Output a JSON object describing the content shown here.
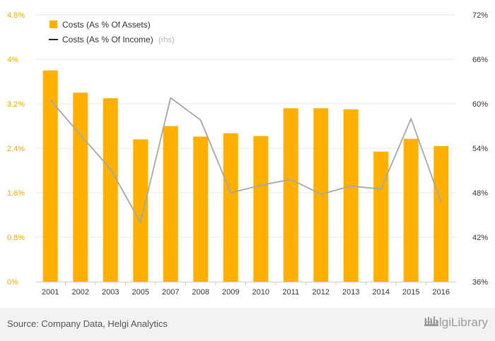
{
  "chart_data": {
    "type": "bar",
    "categories": [
      "2001",
      "2002",
      "2003",
      "2005",
      "2007",
      "2008",
      "2009",
      "2010",
      "2011",
      "2012",
      "2013",
      "2014",
      "2015",
      "2016"
    ],
    "series": [
      {
        "name": "Costs (As % Of Assets)",
        "axis": "left",
        "kind": "bar",
        "color": "#ffb000",
        "values": [
          3.8,
          3.4,
          3.3,
          2.56,
          2.8,
          2.61,
          2.67,
          2.62,
          3.12,
          3.12,
          3.1,
          2.34,
          2.57,
          2.44
        ]
      },
      {
        "name": "Costs (As % Of Income)",
        "axis": "right",
        "kind": "line",
        "color": "#a6a6a6",
        "values": [
          60.5,
          55.8,
          51.2,
          44.0,
          60.8,
          57.8,
          48.0,
          49.0,
          49.8,
          47.8,
          48.9,
          48.5,
          58.0,
          46.7
        ]
      }
    ],
    "yleft": {
      "lim": [
        0,
        4.8
      ],
      "ticks": [
        "0%",
        "0.8%",
        "1.6%",
        "2.4%",
        "3.2%",
        "4%",
        "4.8%"
      ]
    },
    "yright": {
      "lim": [
        36,
        72
      ],
      "ticks": [
        "36%",
        "42%",
        "48%",
        "54%",
        "60%",
        "66%",
        "72%"
      ]
    },
    "legend": {
      "position": "top-left",
      "items": [
        {
          "label": "Costs (As % Of Assets)",
          "marker": "square",
          "color": "#ffb000"
        },
        {
          "label": "Costs (As % Of Income)",
          "suffix": "(rhs)",
          "marker": "line",
          "color": "#222222"
        }
      ]
    }
  },
  "footer": {
    "source": "Source: Company Data, Helgi Analytics",
    "brand": "HelgiLibrary",
    "brand_icon": "helgi-logo-icon"
  },
  "colors": {
    "left_axis": "#f2a900",
    "grid": "#e8e8e8",
    "axis_line": "#cccccc"
  }
}
